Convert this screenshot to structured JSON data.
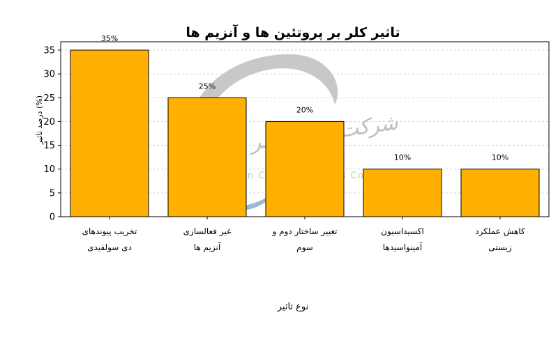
{
  "chart_data": {
    "type": "bar",
    "title": "تاثیر کلر بر پروتئین ها و آنزیم ها",
    "xlabel": "نوع تاثیر",
    "ylabel": "درصد تاثیر (%)",
    "categories": [
      [
        "تخریب پیوندهای",
        "دی سولفیدی"
      ],
      [
        "غیر فعالسازی",
        "آنزیم ها"
      ],
      [
        "تغییر ساختار دوم و",
        "سوم"
      ],
      [
        "اکسیداسیون",
        "آمینواسیدها"
      ],
      [
        "کاهش عملکرد",
        "زیستی"
      ]
    ],
    "values": [
      35,
      25,
      20,
      10,
      10
    ],
    "value_labels": [
      "35%",
      "25%",
      "20%",
      "10%",
      "10%"
    ],
    "ylim": [
      0,
      36.75
    ],
    "yticks": [
      0,
      5,
      10,
      15,
      20,
      25,
      30,
      35
    ],
    "grid": true,
    "bar_color": "#FFB000",
    "edge_color": "#000000"
  },
  "watermark": {
    "company_fa": "شرکت صنایع کلر ایران",
    "company_en": "Iran Chlor Industries Co"
  }
}
